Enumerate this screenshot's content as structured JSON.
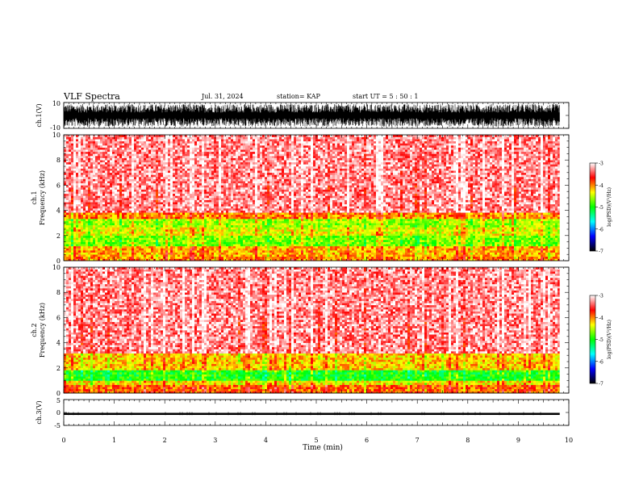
{
  "header": {
    "title": "VLF Spectra",
    "date": "Jul. 31, 2024",
    "station": "station= KAP",
    "start": "start UT =  5 : 50 : 1"
  },
  "colors": {
    "waveform": "#000000",
    "colormap": [
      "#ffffff",
      "#ff0000",
      "#ffff00",
      "#00ff00",
      "#00ffff",
      "#0000ff",
      "#000000"
    ]
  },
  "chart_data": [
    {
      "type": "line",
      "name": "ch1-waveform",
      "ylabel": "ch.1(V)",
      "ylim": [
        -10,
        10
      ],
      "yticks": [
        "10",
        "-10"
      ],
      "xlim": [
        0,
        10
      ],
      "data_end": 9.82,
      "note_values": "dense oscillating waveform spanning roughly -8 to +8 V"
    },
    {
      "type": "heatmap",
      "name": "ch1-spectrogram",
      "ylabel": "ch.1\nFrequency (kHz)",
      "ylim": [
        0,
        10
      ],
      "yticks": [
        "0",
        "2",
        "4",
        "6",
        "8",
        "10"
      ],
      "xlim": [
        0,
        10
      ],
      "data_end": 9.82,
      "colorbar": {
        "label": "log(PSD)(V²/Hz)",
        "range": [
          -7,
          -3
        ],
        "ticks": [
          "-3",
          "-4",
          "-5",
          "-6",
          "-7"
        ]
      },
      "bands": [
        {
          "from": 0.0,
          "to": 0.3,
          "level": -4.0
        },
        {
          "from": 0.3,
          "to": 1.2,
          "level": -4.1
        },
        {
          "from": 1.2,
          "to": 2.0,
          "level": -4.7
        },
        {
          "from": 2.0,
          "to": 2.6,
          "level": -4.4
        },
        {
          "from": 2.6,
          "to": 3.3,
          "level": -4.6
        },
        {
          "from": 3.3,
          "to": 3.8,
          "level": -4.0
        },
        {
          "from": 3.8,
          "to": 10.0,
          "level": -3.3
        }
      ]
    },
    {
      "type": "heatmap",
      "name": "ch2-spectrogram",
      "ylabel": "ch.2\nFrequency (kHz)",
      "ylim": [
        0,
        10
      ],
      "yticks": [
        "0",
        "2",
        "4",
        "6",
        "8",
        "10"
      ],
      "xlim": [
        0,
        10
      ],
      "data_end": 9.82,
      "colorbar": {
        "label": "log(PSD)(V²/Hz)",
        "range": [
          -7,
          -3
        ],
        "ticks": [
          "-3",
          "-4",
          "-5",
          "-6",
          "-7"
        ]
      },
      "bands": [
        {
          "from": 0.0,
          "to": 0.6,
          "level": -3.9
        },
        {
          "from": 0.6,
          "to": 1.0,
          "level": -4.3
        },
        {
          "from": 1.0,
          "to": 1.9,
          "level": -5.0
        },
        {
          "from": 1.9,
          "to": 3.2,
          "level": -4.2
        },
        {
          "from": 3.2,
          "to": 10.0,
          "level": -3.3
        }
      ]
    },
    {
      "type": "line",
      "name": "ch3-waveform",
      "ylabel": "ch.3(V)",
      "ylim": [
        -5,
        5
      ],
      "yticks": [
        "5",
        "0",
        "-5"
      ],
      "xlim": [
        0,
        10
      ],
      "data_end": 9.82,
      "note_values": "narrow band around -0.5 V"
    }
  ],
  "xaxis": {
    "label": "Time (min)",
    "ticks": [
      "0",
      "1",
      "2",
      "3",
      "4",
      "5",
      "6",
      "7",
      "8",
      "9",
      "10"
    ]
  }
}
